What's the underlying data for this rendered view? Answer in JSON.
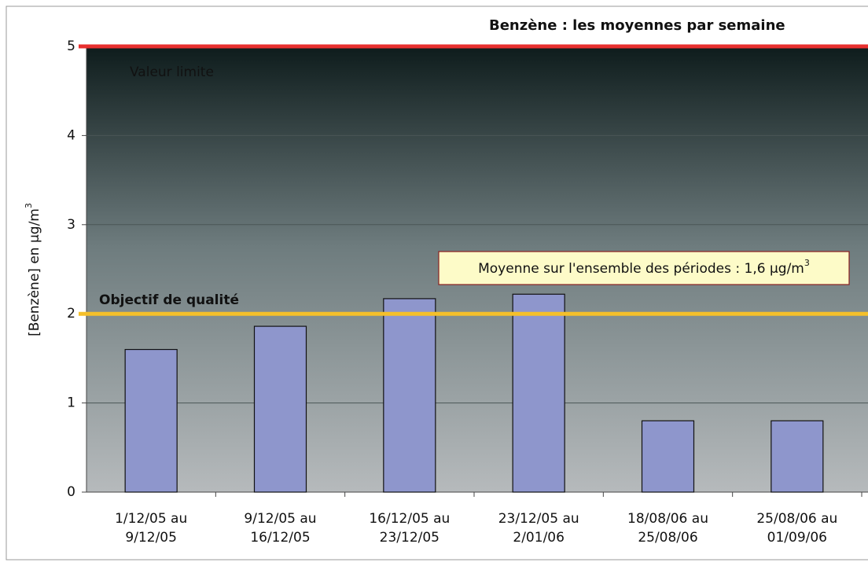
{
  "chart_data": {
    "type": "bar",
    "title": "Benzène : les moyennes par semaine",
    "y_label": "[Benzène] en µg/m",
    "y_label_sup": "3",
    "categories": [
      [
        "1/12/05 au",
        "9/12/05"
      ],
      [
        "9/12/05 au",
        "16/12/05"
      ],
      [
        "16/12/05 au",
        "23/12/05"
      ],
      [
        "23/12/05 au",
        "2/01/06"
      ],
      [
        "18/08/06 au",
        "25/08/06"
      ],
      [
        "25/08/06 au",
        "01/09/06"
      ]
    ],
    "values": [
      1.6,
      1.86,
      2.17,
      2.22,
      0.8,
      0.8
    ],
    "color": "#8e96cc",
    "ylim": [
      0,
      5
    ],
    "yticks": [
      0,
      1,
      2,
      3,
      4,
      5
    ],
    "grid": true,
    "reference_lines": [
      {
        "label": "Valeur limite",
        "value": 5,
        "color": "#e8302f",
        "label_color": "#e8302f"
      },
      {
        "label": "Objectif de qualité",
        "value": 2,
        "color": "#f5c02a",
        "label_color": "#f07030"
      }
    ],
    "annotation": {
      "text": "Moyenne sur l'ensemble des périodes : 1,6 µg/m",
      "sup": "3"
    }
  }
}
